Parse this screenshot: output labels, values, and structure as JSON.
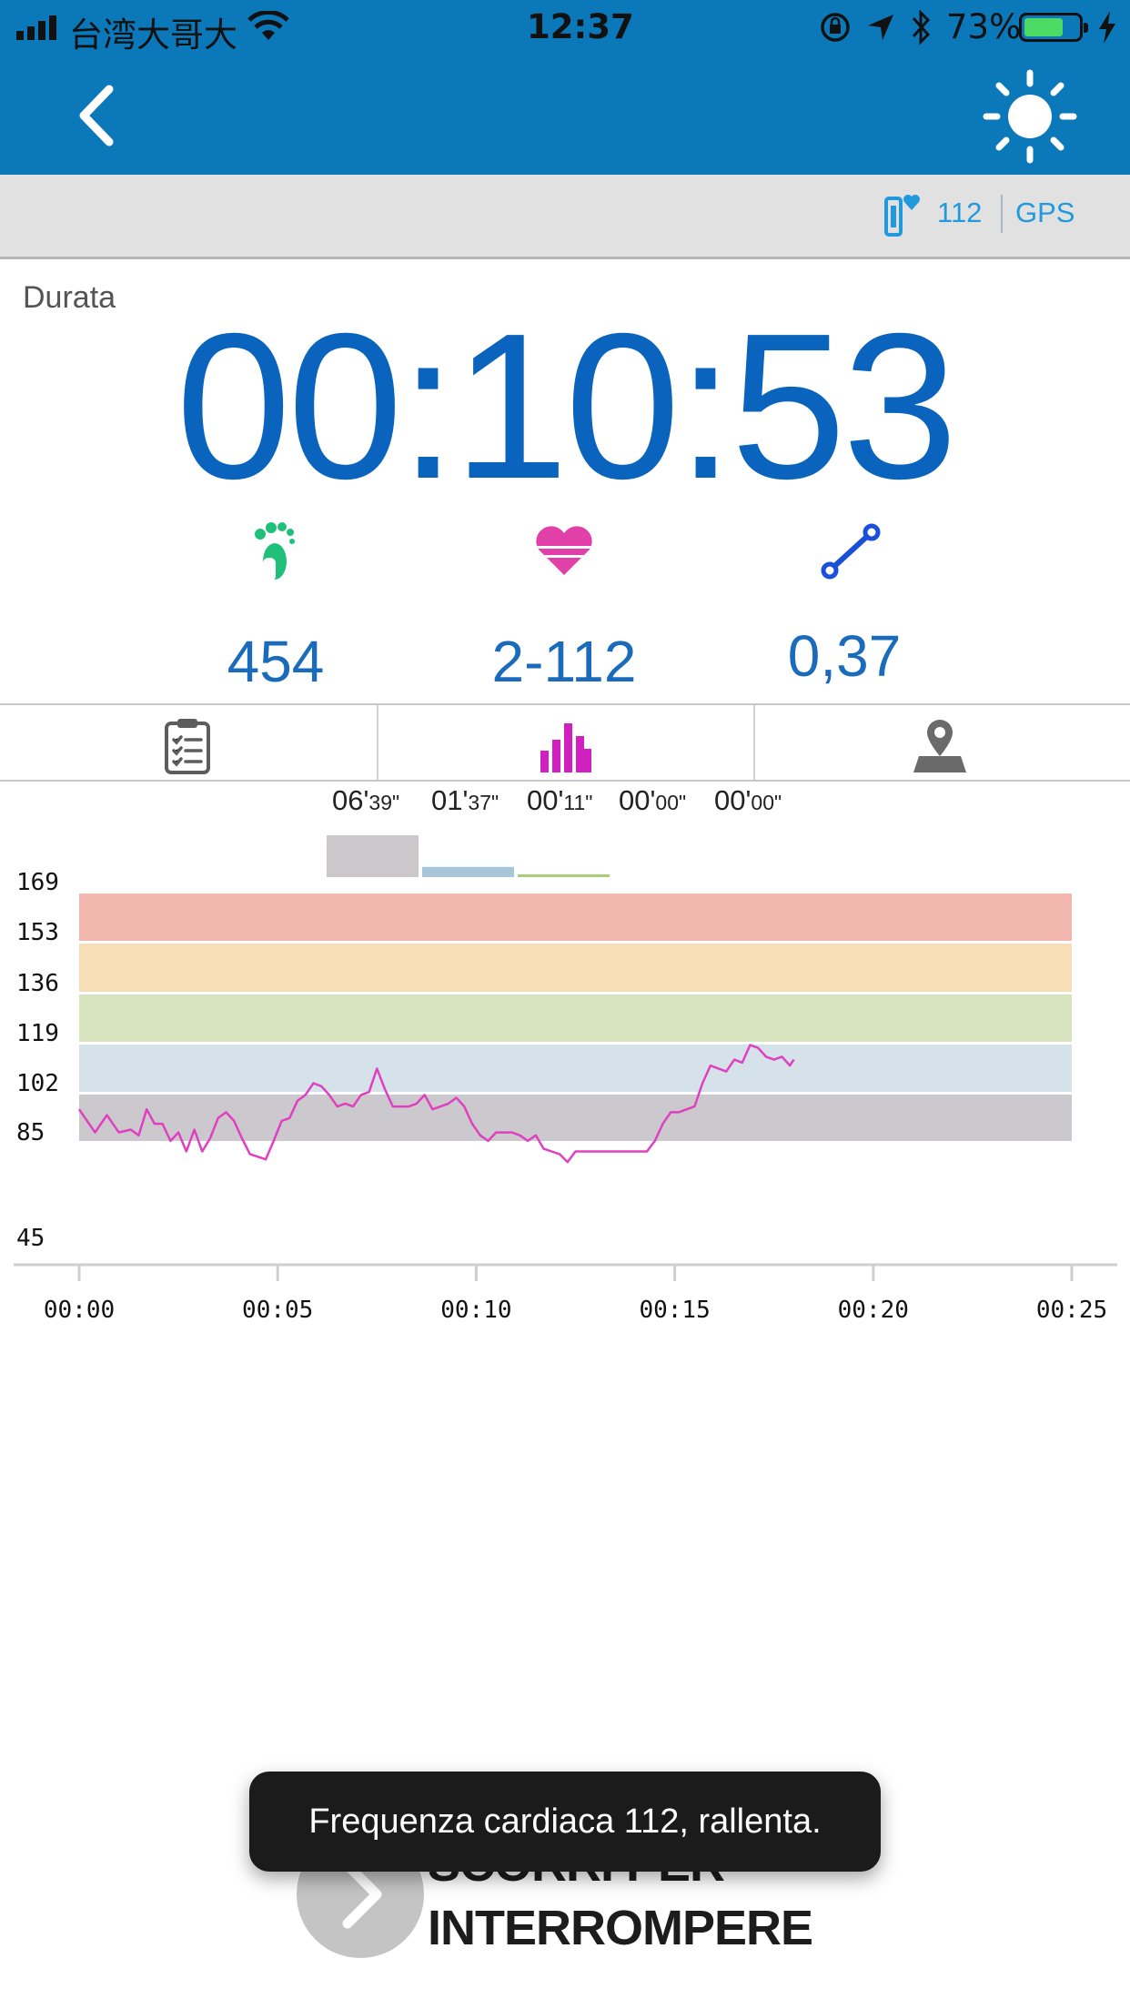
{
  "status_bar": {
    "carrier": "台湾大哥大",
    "time": "12:37",
    "battery_percent": "73%",
    "battery_level": 0.73,
    "battery_color": "#4cd964"
  },
  "nav": {
    "back_icon": "chevron-left-icon",
    "brightness_icon": "sun-icon"
  },
  "sub_bar": {
    "heart_rate_value": "112",
    "gps_label": "GPS",
    "device_icon": "hr-device-icon"
  },
  "workout": {
    "duration_label": "Durata",
    "duration": "00:10:53"
  },
  "metrics": [
    {
      "icon": "footprint-icon",
      "value": "454",
      "color": "#20c07a"
    },
    {
      "icon": "heart-icon",
      "value": "2-112",
      "color": "#e040a8"
    },
    {
      "icon": "distance-icon",
      "value": "0,37",
      "color": "#1a4fd8"
    }
  ],
  "tabs": [
    {
      "icon": "clipboard-icon",
      "active": false
    },
    {
      "icon": "bar-chart-icon",
      "active": true,
      "color": "#d020c0"
    },
    {
      "icon": "map-pin-icon",
      "active": false
    }
  ],
  "zone_times": [
    {
      "min": "06'",
      "sec": "39\""
    },
    {
      "min": "01'",
      "sec": "37\""
    },
    {
      "min": "00'",
      "sec": "11\""
    },
    {
      "min": "00'",
      "sec": "00\""
    },
    {
      "min": "00'",
      "sec": "00\""
    }
  ],
  "chart_data": {
    "type": "line",
    "title": "",
    "xlabel": "",
    "ylabel": "",
    "x_ticks": [
      "00:00",
      "00:05",
      "00:10",
      "00:15",
      "00:20",
      "00:25"
    ],
    "y_ticks": [
      169,
      153,
      136,
      119,
      102,
      85,
      45
    ],
    "ylim": [
      45,
      169
    ],
    "xlim_min": [
      0,
      25
    ],
    "zones": [
      {
        "from": 153,
        "to": 169,
        "color": "#f2b8b0"
      },
      {
        "from": 136,
        "to": 153,
        "color": "#f7deb7"
      },
      {
        "from": 119,
        "to": 136,
        "color": "#d7e4bd"
      },
      {
        "from": 102,
        "to": 119,
        "color": "#d5e2ea"
      },
      {
        "from": 85,
        "to": 102,
        "color": "#ccc9ce"
      }
    ],
    "zone_time_bars": [
      {
        "zone": "85-102",
        "minutes": 6.65,
        "color": "#cbc7cb"
      },
      {
        "zone": "102-119",
        "minutes": 1.62,
        "color": "#a9c6d8"
      },
      {
        "zone": "119-136",
        "minutes": 0.18,
        "color": "#a7cf78"
      },
      {
        "zone": "136-153",
        "minutes": 0,
        "color": "#f0c98a"
      },
      {
        "zone": "153-169",
        "minutes": 0,
        "color": "#ee9a8e"
      }
    ],
    "series": [
      {
        "color": "#e040c0",
        "points": [
          [
            0,
            95
          ],
          [
            0.2,
            91
          ],
          [
            0.4,
            87
          ],
          [
            0.7,
            93
          ],
          [
            1.0,
            87
          ],
          [
            1.3,
            88
          ],
          [
            1.5,
            86
          ],
          [
            1.7,
            95
          ],
          [
            1.9,
            90
          ],
          [
            2.1,
            90
          ],
          [
            2.3,
            84
          ],
          [
            2.5,
            87
          ],
          [
            2.7,
            80
          ],
          [
            2.9,
            88
          ],
          [
            3.1,
            80
          ],
          [
            3.3,
            85
          ],
          [
            3.5,
            92
          ],
          [
            3.7,
            94
          ],
          [
            3.9,
            91
          ],
          [
            4.1,
            85
          ],
          [
            4.3,
            79
          ],
          [
            4.5,
            78
          ],
          [
            4.7,
            77
          ],
          [
            4.9,
            84
          ],
          [
            5.1,
            91
          ],
          [
            5.3,
            92
          ],
          [
            5.5,
            98
          ],
          [
            5.7,
            100
          ],
          [
            5.9,
            104
          ],
          [
            6.1,
            103
          ],
          [
            6.3,
            100
          ],
          [
            6.5,
            96
          ],
          [
            6.7,
            97
          ],
          [
            6.9,
            96
          ],
          [
            7.1,
            100
          ],
          [
            7.3,
            101
          ],
          [
            7.5,
            109
          ],
          [
            7.7,
            102
          ],
          [
            7.9,
            96
          ],
          [
            8.1,
            96
          ],
          [
            8.3,
            96
          ],
          [
            8.5,
            97
          ],
          [
            8.7,
            100
          ],
          [
            8.9,
            95
          ],
          [
            9.1,
            96
          ],
          [
            9.3,
            97
          ],
          [
            9.5,
            99
          ],
          [
            9.7,
            96
          ],
          [
            9.9,
            90
          ],
          [
            10.1,
            86
          ],
          [
            10.3,
            84
          ],
          [
            10.5,
            87
          ],
          [
            10.7,
            87
          ],
          [
            10.9,
            87
          ],
          [
            11.1,
            86
          ],
          [
            11.3,
            84
          ],
          [
            11.5,
            86
          ],
          [
            11.7,
            81
          ],
          [
            11.9,
            80
          ],
          [
            12.1,
            79
          ],
          [
            12.3,
            76
          ],
          [
            12.5,
            80
          ],
          [
            12.7,
            80
          ],
          [
            12.9,
            80
          ],
          [
            13.1,
            80
          ],
          [
            13.3,
            80
          ],
          [
            13.5,
            80
          ],
          [
            13.7,
            80
          ],
          [
            13.9,
            80
          ],
          [
            14.1,
            80
          ],
          [
            14.3,
            80
          ],
          [
            14.5,
            84
          ],
          [
            14.7,
            90
          ],
          [
            14.9,
            94
          ],
          [
            15.1,
            94
          ],
          [
            15.3,
            95
          ],
          [
            15.5,
            96
          ],
          [
            15.7,
            104
          ],
          [
            15.9,
            110
          ],
          [
            16.1,
            109
          ],
          [
            16.3,
            108
          ],
          [
            16.5,
            112
          ],
          [
            16.7,
            111
          ],
          [
            16.9,
            117
          ],
          [
            17.1,
            116
          ],
          [
            17.3,
            113
          ],
          [
            17.5,
            112
          ],
          [
            17.7,
            113
          ],
          [
            17.9,
            110
          ],
          [
            18.0,
            112
          ]
        ]
      }
    ]
  },
  "toast": {
    "message": "Frequenza cardiaca 112, rallenta."
  },
  "slide_control": {
    "line1": "SCORRI PER",
    "line2": "INTERROMPERE",
    "icon": "chevron-right-icon"
  }
}
